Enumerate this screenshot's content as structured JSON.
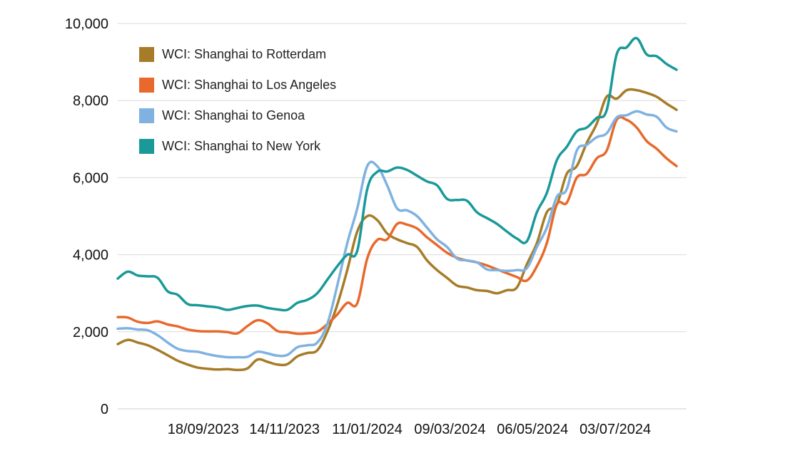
{
  "chart_data": {
    "type": "line",
    "title": "",
    "xlabel": "",
    "ylabel": "",
    "ylim": [
      0,
      10000
    ],
    "yticks": [
      0,
      2000,
      4000,
      6000,
      8000,
      10000
    ],
    "ytick_labels": [
      "0",
      "2,000",
      "4,000",
      "6,000",
      "8,000",
      "10,000"
    ],
    "xlim": [
      "2023-07-20",
      "2024-08-22"
    ],
    "xticks": [
      "2023-09-18",
      "2023-11-14",
      "2024-01-11",
      "2024-03-09",
      "2024-05-06",
      "2024-07-03"
    ],
    "xtick_labels": [
      "18/09/2023",
      "14/11/2023",
      "11/01/2024",
      "09/03/2024",
      "06/05/2024",
      "03/07/2024"
    ],
    "grid": "horizontal",
    "legend_position": "top-left",
    "series": [
      {
        "name": "WCI: Shanghai to Rotterdam",
        "color": "#a67c28",
        "points": [
          [
            "2023-07-20",
            1680
          ],
          [
            "2023-07-27",
            1790
          ],
          [
            "2023-08-03",
            1720
          ],
          [
            "2023-08-10",
            1650
          ],
          [
            "2023-08-17",
            1530
          ],
          [
            "2023-08-24",
            1390
          ],
          [
            "2023-08-31",
            1250
          ],
          [
            "2023-09-07",
            1150
          ],
          [
            "2023-09-14",
            1070
          ],
          [
            "2023-09-21",
            1040
          ],
          [
            "2023-09-28",
            1020
          ],
          [
            "2023-10-05",
            1030
          ],
          [
            "2023-10-12",
            1010
          ],
          [
            "2023-10-19",
            1050
          ],
          [
            "2023-10-26",
            1280
          ],
          [
            "2023-11-02",
            1220
          ],
          [
            "2023-11-09",
            1150
          ],
          [
            "2023-11-16",
            1160
          ],
          [
            "2023-11-23",
            1360
          ],
          [
            "2023-11-30",
            1450
          ],
          [
            "2023-12-07",
            1520
          ],
          [
            "2023-12-14",
            2000
          ],
          [
            "2023-12-21",
            2700
          ],
          [
            "2023-12-28",
            3600
          ],
          [
            "2024-01-04",
            4600
          ],
          [
            "2024-01-11",
            5000
          ],
          [
            "2024-01-18",
            4900
          ],
          [
            "2024-01-25",
            4550
          ],
          [
            "2024-02-01",
            4400
          ],
          [
            "2024-02-08",
            4300
          ],
          [
            "2024-02-15",
            4200
          ],
          [
            "2024-02-22",
            3850
          ],
          [
            "2024-02-29",
            3600
          ],
          [
            "2024-03-07",
            3400
          ],
          [
            "2024-03-14",
            3200
          ],
          [
            "2024-03-21",
            3150
          ],
          [
            "2024-03-28",
            3080
          ],
          [
            "2024-04-04",
            3060
          ],
          [
            "2024-04-11",
            3000
          ],
          [
            "2024-04-18",
            3080
          ],
          [
            "2024-04-25",
            3150
          ],
          [
            "2024-05-02",
            3750
          ],
          [
            "2024-05-09",
            4300
          ],
          [
            "2024-05-16",
            5100
          ],
          [
            "2024-05-23",
            5300
          ],
          [
            "2024-05-30",
            6100
          ],
          [
            "2024-06-06",
            6300
          ],
          [
            "2024-06-13",
            6900
          ],
          [
            "2024-06-20",
            7400
          ],
          [
            "2024-06-27",
            8100
          ],
          [
            "2024-07-04",
            8050
          ],
          [
            "2024-07-11",
            8270
          ],
          [
            "2024-07-18",
            8270
          ],
          [
            "2024-07-25",
            8200
          ],
          [
            "2024-08-01",
            8100
          ],
          [
            "2024-08-08",
            7920
          ],
          [
            "2024-08-15",
            7760
          ]
        ]
      },
      {
        "name": "WCI: Shanghai to Los Angeles",
        "color": "#e8692b",
        "points": [
          [
            "2023-07-20",
            2380
          ],
          [
            "2023-07-27",
            2370
          ],
          [
            "2023-08-03",
            2260
          ],
          [
            "2023-08-10",
            2230
          ],
          [
            "2023-08-17",
            2270
          ],
          [
            "2023-08-24",
            2190
          ],
          [
            "2023-08-31",
            2140
          ],
          [
            "2023-09-07",
            2060
          ],
          [
            "2023-09-14",
            2020
          ],
          [
            "2023-09-21",
            2010
          ],
          [
            "2023-09-28",
            2010
          ],
          [
            "2023-10-05",
            1990
          ],
          [
            "2023-10-12",
            1960
          ],
          [
            "2023-10-19",
            2150
          ],
          [
            "2023-10-26",
            2300
          ],
          [
            "2023-11-02",
            2220
          ],
          [
            "2023-11-09",
            2020
          ],
          [
            "2023-11-16",
            1990
          ],
          [
            "2023-11-23",
            1950
          ],
          [
            "2023-11-30",
            1960
          ],
          [
            "2023-12-07",
            2000
          ],
          [
            "2023-12-14",
            2200
          ],
          [
            "2023-12-21",
            2450
          ],
          [
            "2023-12-28",
            2750
          ],
          [
            "2024-01-04",
            2740
          ],
          [
            "2024-01-11",
            3900
          ],
          [
            "2024-01-18",
            4380
          ],
          [
            "2024-01-25",
            4400
          ],
          [
            "2024-02-01",
            4800
          ],
          [
            "2024-02-08",
            4780
          ],
          [
            "2024-02-15",
            4680
          ],
          [
            "2024-02-22",
            4450
          ],
          [
            "2024-02-29",
            4250
          ],
          [
            "2024-03-07",
            4050
          ],
          [
            "2024-03-14",
            3920
          ],
          [
            "2024-03-21",
            3850
          ],
          [
            "2024-03-28",
            3800
          ],
          [
            "2024-04-04",
            3720
          ],
          [
            "2024-04-11",
            3620
          ],
          [
            "2024-04-18",
            3520
          ],
          [
            "2024-04-25",
            3420
          ],
          [
            "2024-05-02",
            3330
          ],
          [
            "2024-05-09",
            3700
          ],
          [
            "2024-05-16",
            4300
          ],
          [
            "2024-05-23",
            5300
          ],
          [
            "2024-05-30",
            5350
          ],
          [
            "2024-06-06",
            6000
          ],
          [
            "2024-06-13",
            6100
          ],
          [
            "2024-06-20",
            6500
          ],
          [
            "2024-06-27",
            6700
          ],
          [
            "2024-07-04",
            7500
          ],
          [
            "2024-07-11",
            7500
          ],
          [
            "2024-07-18",
            7300
          ],
          [
            "2024-07-25",
            6950
          ],
          [
            "2024-08-01",
            6750
          ],
          [
            "2024-08-08",
            6500
          ],
          [
            "2024-08-15",
            6300
          ]
        ]
      },
      {
        "name": "WCI: Shanghai to Genoa",
        "color": "#7fb2e0",
        "points": [
          [
            "2023-07-20",
            2080
          ],
          [
            "2023-07-27",
            2090
          ],
          [
            "2023-08-03",
            2060
          ],
          [
            "2023-08-10",
            2040
          ],
          [
            "2023-08-17",
            1910
          ],
          [
            "2023-08-24",
            1720
          ],
          [
            "2023-08-31",
            1560
          ],
          [
            "2023-09-07",
            1500
          ],
          [
            "2023-09-14",
            1480
          ],
          [
            "2023-09-21",
            1420
          ],
          [
            "2023-09-28",
            1370
          ],
          [
            "2023-10-05",
            1340
          ],
          [
            "2023-10-12",
            1340
          ],
          [
            "2023-10-19",
            1350
          ],
          [
            "2023-10-26",
            1480
          ],
          [
            "2023-11-02",
            1440
          ],
          [
            "2023-11-09",
            1380
          ],
          [
            "2023-11-16",
            1400
          ],
          [
            "2023-11-23",
            1600
          ],
          [
            "2023-11-30",
            1650
          ],
          [
            "2023-12-07",
            1720
          ],
          [
            "2023-12-14",
            2200
          ],
          [
            "2023-12-21",
            3200
          ],
          [
            "2023-12-28",
            4300
          ],
          [
            "2024-01-04",
            5200
          ],
          [
            "2024-01-11",
            6300
          ],
          [
            "2024-01-18",
            6300
          ],
          [
            "2024-01-25",
            5800
          ],
          [
            "2024-02-01",
            5200
          ],
          [
            "2024-02-08",
            5150
          ],
          [
            "2024-02-15",
            5000
          ],
          [
            "2024-02-22",
            4700
          ],
          [
            "2024-02-29",
            4400
          ],
          [
            "2024-03-07",
            4200
          ],
          [
            "2024-03-14",
            3900
          ],
          [
            "2024-03-21",
            3850
          ],
          [
            "2024-03-28",
            3800
          ],
          [
            "2024-04-04",
            3620
          ],
          [
            "2024-04-11",
            3600
          ],
          [
            "2024-04-18",
            3580
          ],
          [
            "2024-04-25",
            3600
          ],
          [
            "2024-05-02",
            3650
          ],
          [
            "2024-05-09",
            4200
          ],
          [
            "2024-05-16",
            4700
          ],
          [
            "2024-05-23",
            5500
          ],
          [
            "2024-05-30",
            5700
          ],
          [
            "2024-06-06",
            6700
          ],
          [
            "2024-06-13",
            6850
          ],
          [
            "2024-06-20",
            7050
          ],
          [
            "2024-06-27",
            7150
          ],
          [
            "2024-07-04",
            7560
          ],
          [
            "2024-07-11",
            7620
          ],
          [
            "2024-07-18",
            7720
          ],
          [
            "2024-07-25",
            7640
          ],
          [
            "2024-08-01",
            7580
          ],
          [
            "2024-08-08",
            7300
          ],
          [
            "2024-08-15",
            7200
          ]
        ]
      },
      {
        "name": "WCI: Shanghai to New York",
        "color": "#1a9999",
        "points": [
          [
            "2023-07-20",
            3380
          ],
          [
            "2023-07-27",
            3560
          ],
          [
            "2023-08-03",
            3460
          ],
          [
            "2023-08-10",
            3440
          ],
          [
            "2023-08-17",
            3400
          ],
          [
            "2023-08-24",
            3050
          ],
          [
            "2023-08-31",
            2960
          ],
          [
            "2023-09-07",
            2720
          ],
          [
            "2023-09-14",
            2690
          ],
          [
            "2023-09-21",
            2660
          ],
          [
            "2023-09-28",
            2630
          ],
          [
            "2023-10-05",
            2570
          ],
          [
            "2023-10-12",
            2620
          ],
          [
            "2023-10-19",
            2670
          ],
          [
            "2023-10-26",
            2680
          ],
          [
            "2023-11-02",
            2620
          ],
          [
            "2023-11-09",
            2580
          ],
          [
            "2023-11-16",
            2570
          ],
          [
            "2023-11-23",
            2750
          ],
          [
            "2023-11-30",
            2830
          ],
          [
            "2023-12-07",
            3000
          ],
          [
            "2023-12-14",
            3350
          ],
          [
            "2023-12-21",
            3700
          ],
          [
            "2023-12-28",
            4000
          ],
          [
            "2024-01-04",
            4100
          ],
          [
            "2024-01-11",
            5700
          ],
          [
            "2024-01-18",
            6150
          ],
          [
            "2024-01-25",
            6160
          ],
          [
            "2024-02-01",
            6260
          ],
          [
            "2024-02-08",
            6200
          ],
          [
            "2024-02-15",
            6050
          ],
          [
            "2024-02-22",
            5900
          ],
          [
            "2024-02-29",
            5800
          ],
          [
            "2024-03-07",
            5450
          ],
          [
            "2024-03-14",
            5420
          ],
          [
            "2024-03-21",
            5400
          ],
          [
            "2024-03-28",
            5100
          ],
          [
            "2024-04-04",
            4950
          ],
          [
            "2024-04-11",
            4800
          ],
          [
            "2024-04-18",
            4600
          ],
          [
            "2024-04-25",
            4420
          ],
          [
            "2024-05-02",
            4350
          ],
          [
            "2024-05-09",
            5100
          ],
          [
            "2024-05-16",
            5600
          ],
          [
            "2024-05-23",
            6450
          ],
          [
            "2024-05-30",
            6800
          ],
          [
            "2024-06-06",
            7200
          ],
          [
            "2024-06-13",
            7300
          ],
          [
            "2024-06-20",
            7550
          ],
          [
            "2024-06-27",
            7750
          ],
          [
            "2024-07-04",
            9200
          ],
          [
            "2024-07-11",
            9380
          ],
          [
            "2024-07-18",
            9620
          ],
          [
            "2024-07-25",
            9200
          ],
          [
            "2024-08-01",
            9150
          ],
          [
            "2024-08-08",
            8950
          ],
          [
            "2024-08-15",
            8800
          ]
        ]
      }
    ]
  }
}
